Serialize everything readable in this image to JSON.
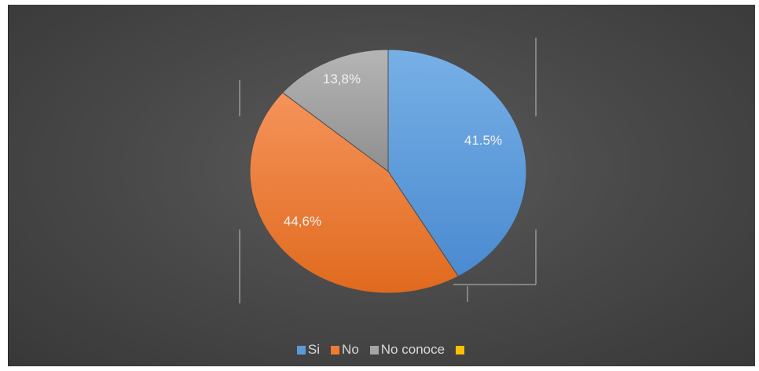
{
  "chart_data": {
    "type": "pie",
    "categories": [
      "Si",
      "No",
      "No conoce",
      ""
    ],
    "values": [
      41.5,
      44.6,
      13.8,
      0
    ],
    "data_labels": [
      "41.5%",
      "44,6%",
      "13,8%",
      ""
    ],
    "colors": [
      "#5b9bd5",
      "#ed7d31",
      "#a5a5a5",
      "#ffc000"
    ],
    "legend_position": "bottom",
    "title": ""
  }
}
